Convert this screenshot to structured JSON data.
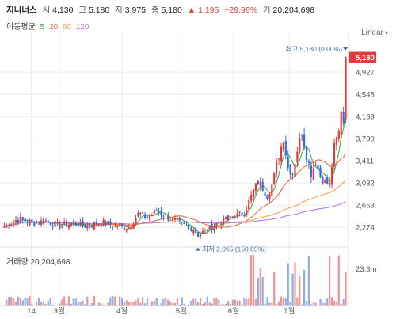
{
  "header": {
    "name": "지니너스",
    "open_label": "시",
    "open": "4,130",
    "high_label": "고",
    "high": "5,180",
    "low_label": "저",
    "low": "3,975",
    "close_label": "종",
    "close": "5,180",
    "change_arrow": "▲",
    "change": "1,195",
    "change_pct": "+29.99%",
    "volume_label": "거",
    "volume": "20,204,698"
  },
  "ma_legend": {
    "label": "이동평균",
    "periods": [
      "5",
      "20",
      "60",
      "120"
    ]
  },
  "scale_button": {
    "label": "Linear"
  },
  "colors": {
    "up": "#e03c3c",
    "down": "#2f6fd6",
    "ma5": "#37b24d",
    "ma20": "#f06a3b",
    "ma60": "#f5a04a",
    "ma120": "#b57be0",
    "grid": "#ececec",
    "axis_text": "#555555",
    "annotation": "#4a6fa5",
    "price_tag": "#e03c3c"
  },
  "chart_data": {
    "type": "candlestick",
    "x_ticks": [
      "14",
      "3월",
      "4월",
      "5월",
      "6월",
      "7월"
    ],
    "y_ticks": [
      2274,
      2653,
      3032,
      3411,
      3790,
      4169,
      4548,
      4927
    ],
    "ylim": [
      2100,
      5350
    ],
    "annotations": {
      "high_label": "최고",
      "high_value": "5,180",
      "high_pct": "(0.00%)",
      "low_label": "최저",
      "low_value": "2,065",
      "low_pct": "(150.85%)",
      "last_price": "5,180"
    },
    "volume": {
      "label": "거래량",
      "value": "20,204,698",
      "axis_max": "23.3m"
    },
    "anchors": [
      [
        0,
        2290
      ],
      [
        6,
        2420
      ],
      [
        12,
        2350
      ],
      [
        18,
        2380
      ],
      [
        24,
        2300
      ],
      [
        30,
        2340
      ],
      [
        36,
        2290
      ],
      [
        42,
        2360
      ],
      [
        48,
        2310
      ],
      [
        54,
        2270
      ],
      [
        58,
        2500
      ],
      [
        62,
        2440
      ],
      [
        66,
        2560
      ],
      [
        70,
        2470
      ],
      [
        74,
        2380
      ],
      [
        78,
        2300
      ],
      [
        82,
        2250
      ],
      [
        84,
        2140
      ],
      [
        87,
        2210
      ],
      [
        92,
        2330
      ],
      [
        96,
        2420
      ],
      [
        100,
        2470
      ],
      [
        104,
        2520
      ],
      [
        108,
        2900
      ],
      [
        110,
        3050
      ],
      [
        112,
        2950
      ],
      [
        114,
        2820
      ],
      [
        116,
        3000
      ],
      [
        119,
        3500
      ],
      [
        121,
        3800
      ],
      [
        123,
        3300
      ],
      [
        125,
        3200
      ],
      [
        127,
        3600
      ],
      [
        129,
        3900
      ],
      [
        131,
        3500
      ],
      [
        133,
        3200
      ],
      [
        135,
        3400
      ],
      [
        137,
        3150
      ],
      [
        139,
        3050
      ],
      [
        141,
        3000
      ],
      [
        143,
        3650
      ],
      [
        145,
        3900
      ],
      [
        146,
        4300
      ],
      [
        147,
        4100
      ],
      [
        148,
        5180
      ]
    ]
  }
}
